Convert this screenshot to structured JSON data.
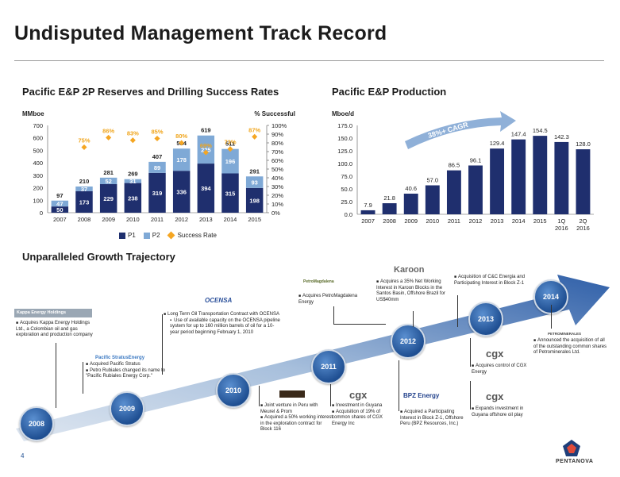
{
  "page": {
    "title": "Undisputed Management Track Record",
    "page_number": "4",
    "brand": "PENTANOVA"
  },
  "reserves_section": {
    "title": "Pacific E&P 2P Reserves and Drilling Success Rates"
  },
  "production_section": {
    "title": "Pacific E&P Production"
  },
  "growth_section": {
    "title": "Unparalleled Growth Trajectory"
  },
  "chart_data": [
    {
      "type": "bar",
      "title": "Pacific E&P 2P Reserves and Drilling Success Rates",
      "ylabel": "MMboe",
      "y2label": "% Successful",
      "categories": [
        "2007",
        "2008",
        "2009",
        "2010",
        "2011",
        "2012",
        "2013",
        "2014",
        "2015"
      ],
      "stacked": true,
      "ylim": [
        0,
        700
      ],
      "y2lim": [
        0,
        100
      ],
      "yticks": [
        "0",
        "100",
        "200",
        "300",
        "400",
        "500",
        "600",
        "700"
      ],
      "y2ticks": [
        "0%",
        "10%",
        "20%",
        "30%",
        "40%",
        "50%",
        "60%",
        "70%",
        "80%",
        "90%",
        "100%"
      ],
      "series": [
        {
          "name": "P1",
          "color": "#1f2f6e",
          "values": [
            50,
            173,
            229,
            238,
            319,
            336,
            394,
            315,
            198
          ]
        },
        {
          "name": "P2",
          "color": "#7fa9d6",
          "values": [
            47,
            37,
            52,
            31,
            89,
            178,
            225,
            196,
            93
          ]
        }
      ],
      "totals": [
        97,
        210,
        281,
        269,
        407,
        514,
        619,
        511,
        291
      ],
      "success_rate": {
        "name": "Success Rate",
        "color": "#f5a623",
        "values": [
          null,
          75,
          86,
          83,
          85,
          80,
          69,
          73,
          87
        ],
        "labels": [
          "",
          "75%",
          "86%",
          "83%",
          "85%",
          "80%",
          "69%",
          "73%",
          "87%"
        ]
      },
      "legend": [
        "P1",
        "P2",
        "Success Rate"
      ],
      "legend_position": "bottom"
    },
    {
      "type": "bar",
      "title": "Pacific E&P Production",
      "ylabel": "Mboe/d",
      "categories": [
        "2007",
        "2008",
        "2009",
        "2010",
        "2011",
        "2012",
        "2013",
        "2014",
        "2015",
        "1Q\n2016",
        "2Q\n2016"
      ],
      "values": [
        7.9,
        21.8,
        40.6,
        57.0,
        86.5,
        96.1,
        129.4,
        147.4,
        154.5,
        142.3,
        128.0
      ],
      "value_labels": [
        "7.9",
        "21.8",
        "40.6",
        "57.0",
        "86.5",
        "96.1",
        "129.4",
        "147.4",
        "154.5",
        "142.3",
        "128.0"
      ],
      "ylim": [
        0,
        175
      ],
      "yticks": [
        "0.0",
        "25.0",
        "50.0",
        "75.0",
        "100.0",
        "125.0",
        "150.0",
        "175.0"
      ],
      "color": "#1f2f6e",
      "annotation": "38%+ CAGR"
    }
  ],
  "timeline": {
    "years": [
      "2008",
      "2009",
      "2010",
      "2011",
      "2012",
      "2013",
      "2014"
    ],
    "kappa_logo": "Kappa Energy Holdings",
    "kappa_note": "Acquires Kappa Energy Holdings Ltd., a Colombian oil and gas exploration and production company",
    "stratus_logo": "Pacific StratusEnergy",
    "stratus_notes": [
      "Acquired Pacific Stratus",
      "Petro Rubiales changed its name to \"Pacific Rubiales Energy Corp.\""
    ],
    "ocensa_logo": "OCENSA",
    "ocensa_title": "Long Term Oil Transportation Contract with OCENSA",
    "ocensa_sub": "Use of available capacity on the OCENSA pipeline system for up to 160 million barrels of oil for a 10-year period beginning February 1, 2010",
    "meurel_notes": [
      "Joint venture in Peru with Meurel & Prom",
      "Acquired a 50% working interest in the exploration contract for Block 116"
    ],
    "cgx_logo": "cgx",
    "guyana_notes": [
      "Investment in Guyana",
      "Acquisition of 19% of common shares of CGX Energy Inc"
    ],
    "petromagdalena_logo": "PetroMagdalena",
    "petromagdalena_note": "Acquires PetroMagdalena Energy",
    "karoon_logo": "Karoon",
    "karoon_note": "Acquires a 35% Net Working Interest in Karoon Blocks in the Santos Basin, Offshore Brazil for US$40mm",
    "bpz_logo": "BPZ Energy",
    "bpz_note": "Acquired a Participating Interest in Block Z-1, Offshore Peru (BPZ Resources, Inc.)",
    "cc_note": "Acquisition of C&C Energia and Participating Interest in Block Z-1",
    "cgx_control_note": "Acquires control of CGX Energy",
    "guyana_expand_note": "Expands investment in Guyana offshore oil play",
    "petrominerales_logo": "PETROMINERALES",
    "petrominerales_note": "Announced the acquisition of all of the outstanding common shares of Petrominerales Ltd."
  }
}
